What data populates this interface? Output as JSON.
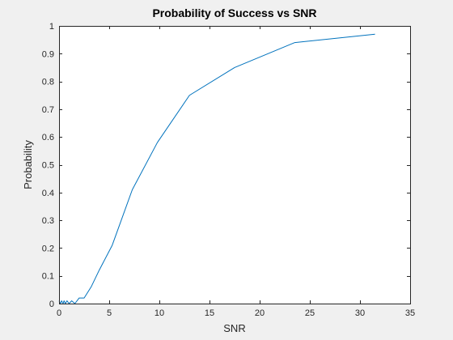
{
  "figure": {
    "background": "#f0f0f0",
    "axes_background": "#ffffff",
    "axis_color": "#262626"
  },
  "chart_data": {
    "type": "line",
    "title": "Probability of Success vs SNR",
    "xlabel": "SNR",
    "ylabel": "Probability",
    "xlim": [
      0,
      35
    ],
    "ylim": [
      0,
      1
    ],
    "xticks": [
      0,
      5,
      10,
      15,
      20,
      25,
      30,
      35
    ],
    "yticks": [
      0,
      0.1,
      0.2,
      0.3,
      0.4,
      0.5,
      0.6,
      0.7,
      0.8,
      0.9,
      1
    ],
    "xtick_labels": [
      "0",
      "5",
      "10",
      "15",
      "20",
      "25",
      "30",
      "35"
    ],
    "ytick_labels": [
      "0",
      "0.1",
      "0.2",
      "0.3",
      "0.4",
      "0.5",
      "0.6",
      "0.7",
      "0.8",
      "0.9",
      "1"
    ],
    "grid": false,
    "box": true,
    "series": [
      {
        "color": "#0072bd",
        "x": [
          0,
          0.13,
          0.25,
          0.4,
          0.5,
          0.63,
          0.79,
          1.0,
          1.26,
          1.58,
          2.0,
          2.5,
          3.2,
          4.0,
          5.3,
          7.3,
          9.8,
          13.0,
          17.5,
          23.5,
          31.5
        ],
        "y": [
          0.01,
          0.0,
          0.01,
          0.0,
          0.01,
          0.0,
          0.01,
          0.0,
          0.01,
          0.0,
          0.02,
          0.02,
          0.06,
          0.12,
          0.21,
          0.41,
          0.58,
          0.75,
          0.85,
          0.94,
          0.97
        ]
      }
    ]
  }
}
